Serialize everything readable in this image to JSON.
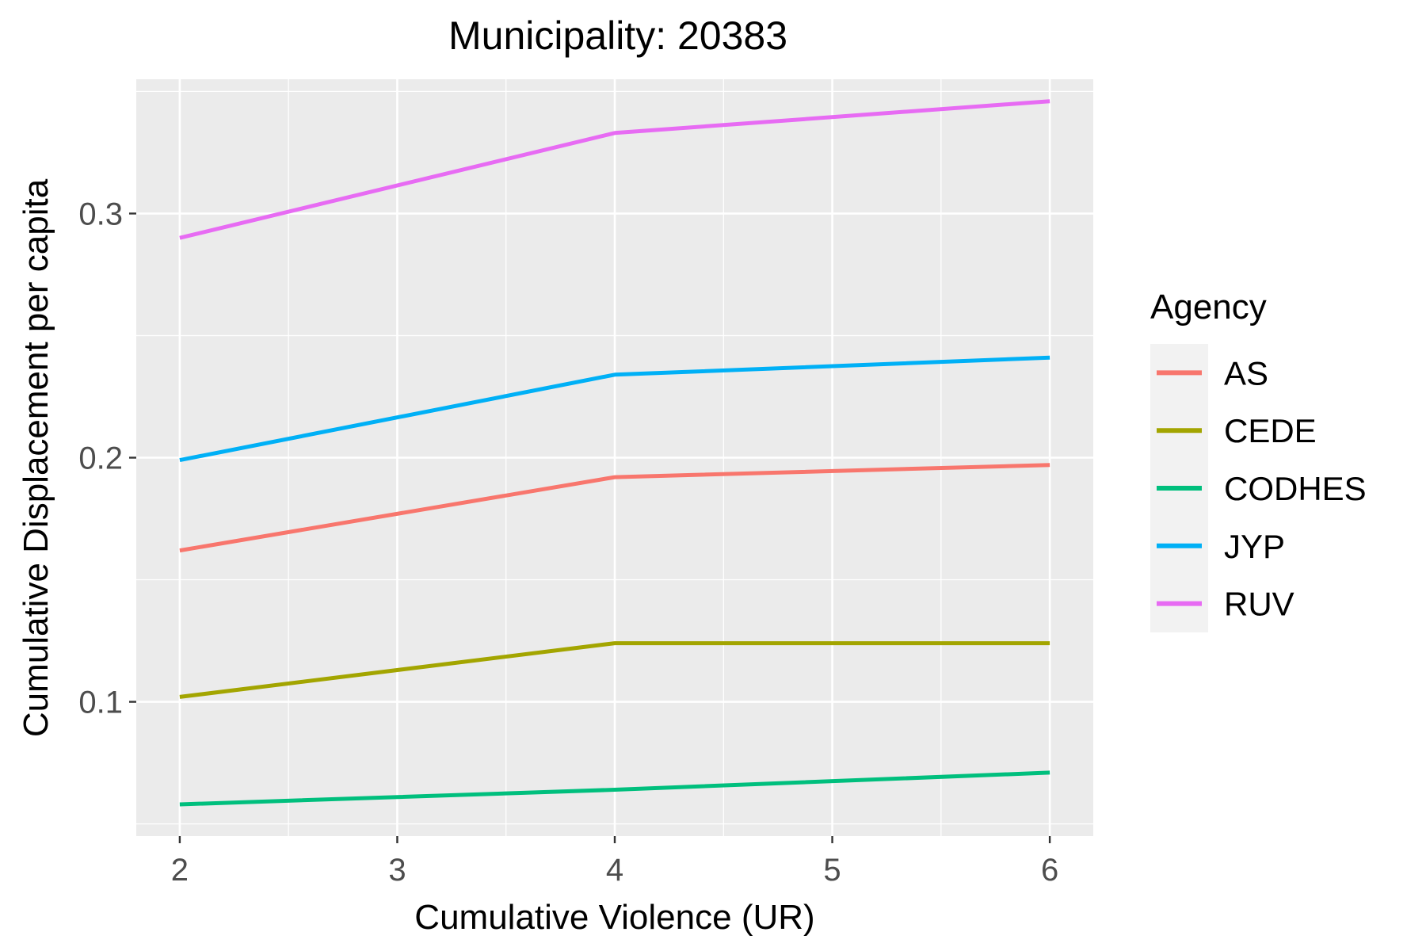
{
  "chart_data": {
    "type": "line",
    "title": "Municipality: 20383",
    "xlabel": "Cumulative Violence (UR)",
    "ylabel": "Cumulative Displacement per capita",
    "x": [
      2,
      4,
      6
    ],
    "xlim": [
      1.8,
      6.2
    ],
    "ylim": [
      0.045,
      0.355
    ],
    "x_ticks": [
      2,
      3,
      4,
      5,
      6
    ],
    "x_tick_labels": [
      "2",
      "3",
      "4",
      "5",
      "6"
    ],
    "y_ticks": [
      0.1,
      0.2,
      0.3
    ],
    "y_tick_labels": [
      "0.1",
      "0.2",
      "0.3"
    ],
    "x_minor_ticks": [
      2.5,
      3.5,
      4.5,
      5.5
    ],
    "y_minor_ticks": [
      0.05,
      0.15,
      0.25,
      0.35
    ],
    "grid": true,
    "legend": {
      "title": "Agency",
      "position": "right"
    },
    "series": [
      {
        "name": "AS",
        "color": "#F8766D",
        "values": [
          0.162,
          0.192,
          0.197
        ]
      },
      {
        "name": "CEDE",
        "color": "#A3A500",
        "values": [
          0.102,
          0.124,
          0.124
        ]
      },
      {
        "name": "CODHES",
        "color": "#00BF7D",
        "values": [
          0.058,
          0.064,
          0.071
        ]
      },
      {
        "name": "JYP",
        "color": "#00B0F6",
        "values": [
          0.199,
          0.234,
          0.241
        ]
      },
      {
        "name": "RUV",
        "color": "#E76BF3",
        "values": [
          0.29,
          0.333,
          0.346
        ]
      }
    ]
  }
}
